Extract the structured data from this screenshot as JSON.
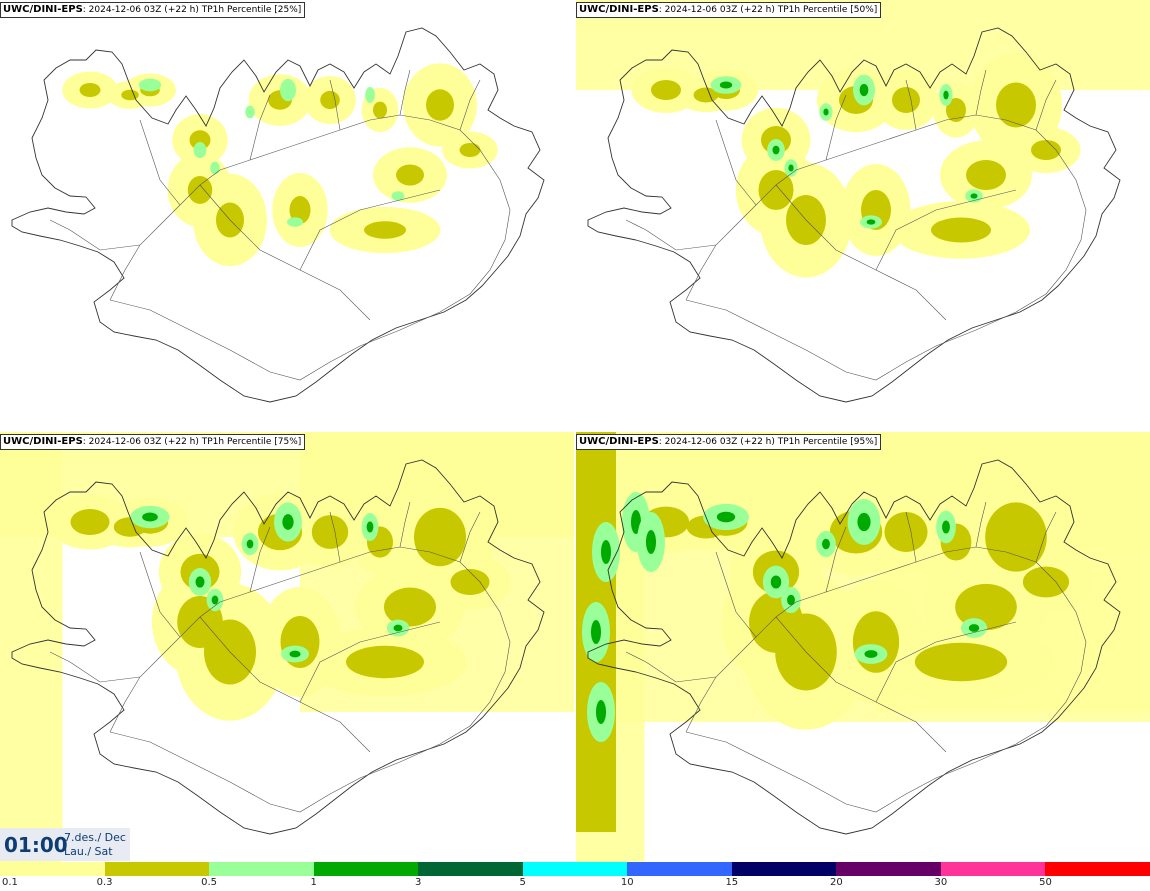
{
  "panels": [
    {
      "source": "UWC/DINI-EPS",
      "run": ": 2024-12-06 03Z (+22 h)",
      "product": " TP1h Percentile [25%]",
      "coverage": 0.25
    },
    {
      "source": "UWC/DINI-EPS",
      "run": ": 2024-12-06 03Z (+22 h)",
      "product": " TP1h Percentile [50%]",
      "coverage": 0.5
    },
    {
      "source": "UWC/DINI-EPS",
      "run": ": 2024-12-06 03Z (+22 h)",
      "product": " TP1h Percentile [75%]",
      "coverage": 0.75
    },
    {
      "source": "UWC/DINI-EPS",
      "run": ": 2024-12-06 03Z (+22 h)",
      "product": " TP1h Percentile [95%]",
      "coverage": 0.95
    }
  ],
  "timestamp": {
    "time": "01:00",
    "date_line1": "7.des./ Dec",
    "date_line2": "Lau./ Sat"
  },
  "legend": {
    "labels": [
      "0.1",
      "0.3",
      "0.5",
      "1",
      "3",
      "5",
      "10",
      "15",
      "20",
      "30",
      "50"
    ],
    "colors": [
      "#ffff99",
      "#c8c800",
      "#99ff99",
      "#00aa00",
      "#006633",
      "#00ffff",
      "#3366ff",
      "#000066",
      "#660066",
      "#ff3399",
      "#ff0000"
    ]
  }
}
